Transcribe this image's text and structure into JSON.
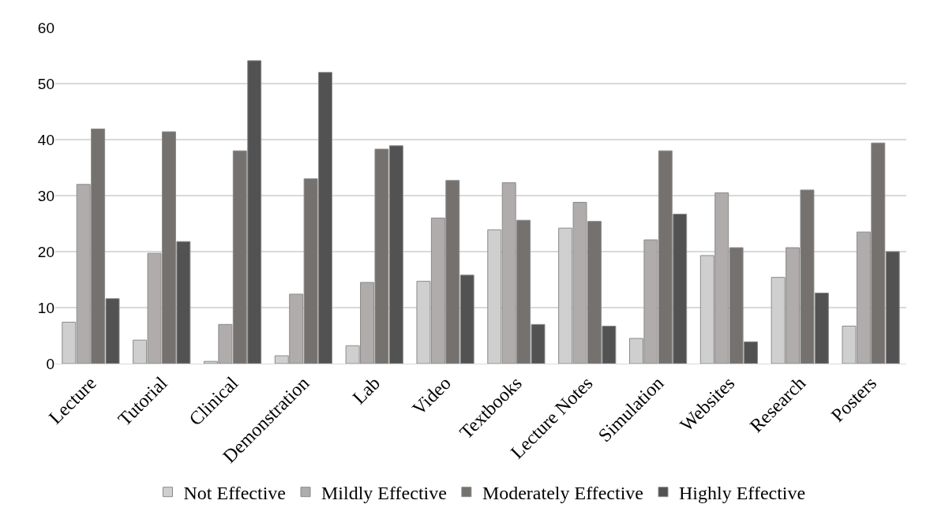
{
  "chart_data": {
    "type": "bar",
    "categories": [
      "Lecture",
      "Tutorial",
      "Clinical",
      "Demonstration",
      "Lab",
      "Video",
      "Textbooks",
      "Lecture Notes",
      "Simulation",
      "Websites",
      "Research",
      "Posters"
    ],
    "series": [
      {
        "name": "Not Effective",
        "color": "#d0cfd0",
        "values": [
          7.4,
          4.2,
          0.4,
          1.4,
          3.2,
          14.7,
          23.9,
          24.2,
          4.5,
          19.3,
          15.4,
          6.7
        ]
      },
      {
        "name": "Mildly Effective",
        "color": "#afacab",
        "values": [
          32,
          19.7,
          7,
          12.4,
          14.5,
          26,
          32.3,
          28.8,
          22.1,
          30.5,
          20.7,
          23.5
        ]
      },
      {
        "name": "Moderately Effective",
        "color": "#75716f",
        "values": [
          41.9,
          41.4,
          38,
          33,
          38.3,
          32.7,
          25.6,
          25.4,
          38,
          20.7,
          31,
          39.4
        ]
      },
      {
        "name": "Highly Effective",
        "color": "#525252",
        "values": [
          11.6,
          21.8,
          54.1,
          52,
          38.9,
          15.8,
          7,
          6.7,
          26.7,
          3.9,
          12.6,
          20
        ]
      }
    ],
    "ylim": [
      0,
      60
    ],
    "yticks": [
      0,
      10,
      20,
      30,
      40,
      50,
      60
    ],
    "grid": "y",
    "legend": "bottom"
  }
}
